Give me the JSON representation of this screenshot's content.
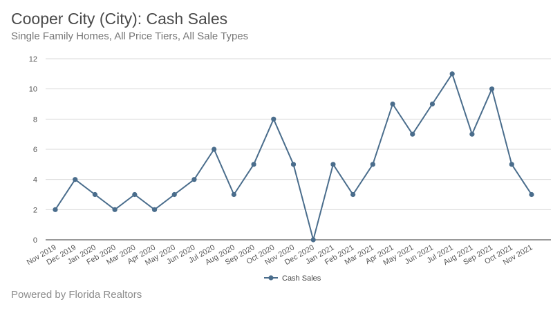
{
  "header": {
    "title": "Cooper City (City): Cash Sales",
    "subtitle": "Single Family Homes, All Price Tiers, All Sale Types"
  },
  "footer": {
    "credit": "Powered by Florida Realtors"
  },
  "colors": {
    "series": "#4a6d8c",
    "grid": "#d9d9d9",
    "axis": "#333333"
  },
  "chart_data": {
    "type": "line",
    "title": "Cooper City (City): Cash Sales",
    "subtitle": "Single Family Homes, All Price Tiers, All Sale Types",
    "xlabel": "",
    "ylabel": "",
    "categories": [
      "Nov 2019",
      "Dec 2019",
      "Jan 2020",
      "Feb 2020",
      "Mar 2020",
      "Apr 2020",
      "May 2020",
      "Jun 2020",
      "Jul 2020",
      "Aug 2020",
      "Sep 2020",
      "Oct 2020",
      "Nov 2020",
      "Dec 2020",
      "Jan 2021",
      "Feb 2021",
      "Mar 2021",
      "Apr 2021",
      "May 2021",
      "Jun 2021",
      "Jul 2021",
      "Aug 2021",
      "Sep 2021",
      "Oct 2021",
      "Nov 2021"
    ],
    "series": [
      {
        "name": "Cash Sales",
        "values": [
          2,
          4,
          3,
          2,
          3,
          2,
          3,
          4,
          6,
          3,
          5,
          8,
          5,
          0,
          5,
          3,
          5,
          9,
          7,
          9,
          11,
          7,
          10,
          5,
          3
        ]
      }
    ],
    "yticks": [
      0,
      2,
      4,
      6,
      8,
      10,
      12
    ],
    "ylim": [
      0,
      12
    ],
    "grid": true,
    "legend": "bottom-center"
  }
}
